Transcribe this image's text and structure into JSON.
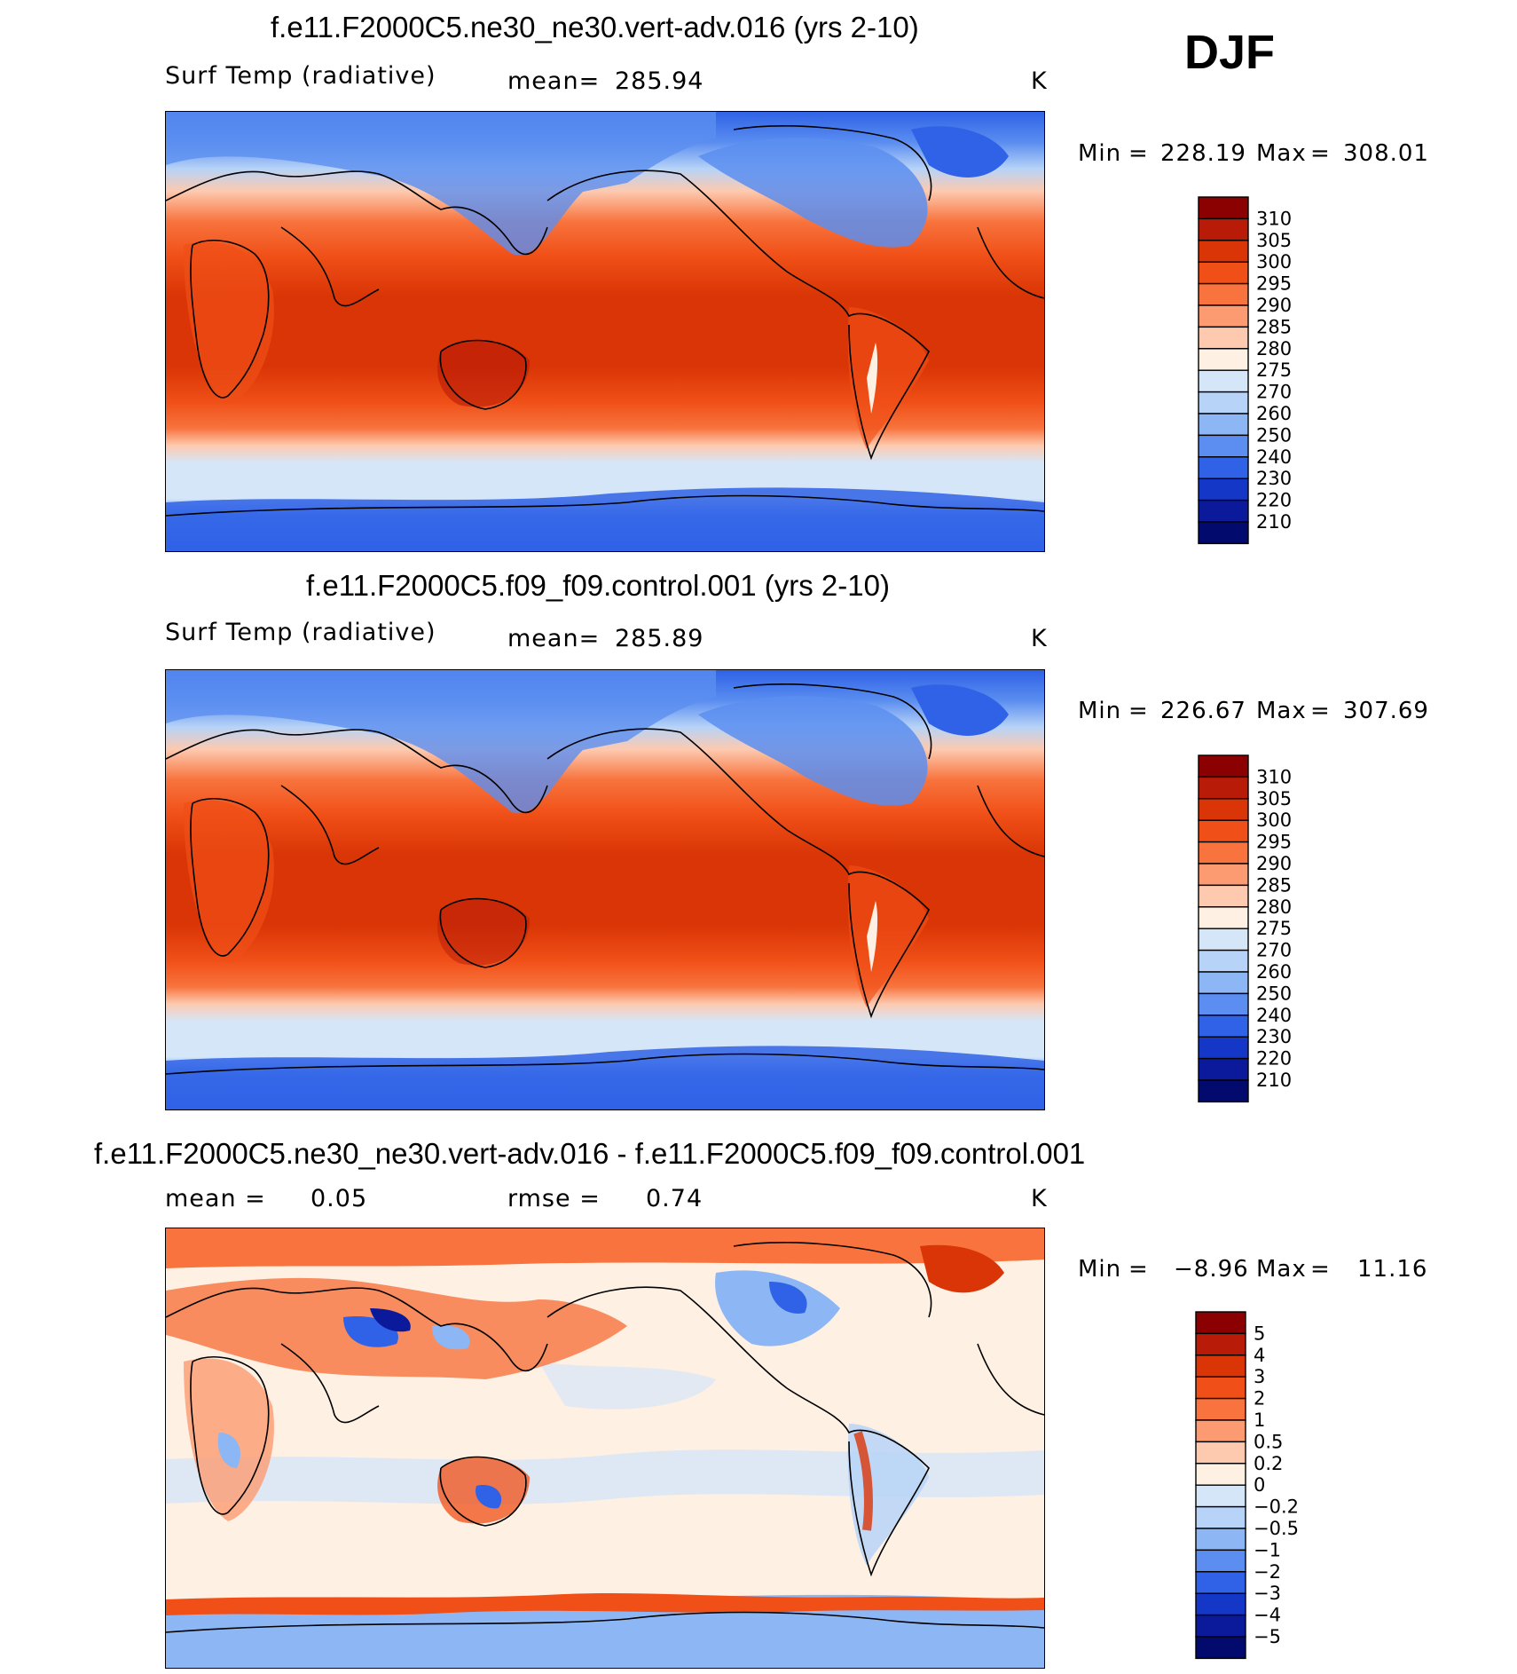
{
  "season": "DJF",
  "chart_data": [
    {
      "type": "heatmap",
      "title": "f.e11.F2000C5.ne30_ne30.vert-adv.016 (yrs 2-10)",
      "variable": "Surf Temp (radiative)",
      "mean_label": "mean=",
      "mean_value": "285.94",
      "units": "K",
      "min_label": "Min",
      "min_value": "228.19",
      "max_label": "Max",
      "max_value": "308.01",
      "levels": [
        "310",
        "305",
        "300",
        "295",
        "290",
        "285",
        "280",
        "275",
        "270",
        "260",
        "250",
        "240",
        "230",
        "220",
        "210"
      ],
      "colors": [
        "#8b0000",
        "#b81b07",
        "#d93506",
        "#f04f17",
        "#f8733d",
        "#fc9b72",
        "#fdcab0",
        "#fef0e2",
        "#d5e6f9",
        "#b7d3f7",
        "#8cb6f4",
        "#5b8ef0",
        "#2f62e6",
        "#1437c8",
        "#0a1a9a",
        "#030a6e"
      ]
    },
    {
      "type": "heatmap",
      "title": "f.e11.F2000C5.f09_f09.control.001 (yrs 2-10)",
      "variable": "Surf Temp (radiative)",
      "mean_label": "mean=",
      "mean_value": "285.89",
      "units": "K",
      "min_label": "Min",
      "min_value": "226.67",
      "max_label": "Max",
      "max_value": "307.69",
      "levels": [
        "310",
        "305",
        "300",
        "295",
        "290",
        "285",
        "280",
        "275",
        "270",
        "260",
        "250",
        "240",
        "230",
        "220",
        "210"
      ],
      "colors": [
        "#8b0000",
        "#b81b07",
        "#d93506",
        "#f04f17",
        "#f8733d",
        "#fc9b72",
        "#fdcab0",
        "#fef0e2",
        "#d5e6f9",
        "#b7d3f7",
        "#8cb6f4",
        "#5b8ef0",
        "#2f62e6",
        "#1437c8",
        "#0a1a9a",
        "#030a6e"
      ]
    },
    {
      "type": "heatmap",
      "title": "f.e11.F2000C5.ne30_ne30.vert-adv.016 - f.e11.F2000C5.f09_f09.control.001",
      "mean_label": "mean =",
      "mean_value": "0.05",
      "rmse_label": "rmse =",
      "rmse_value": "0.74",
      "units": "K",
      "min_label": "Min",
      "min_value": "−8.96",
      "max_label": "Max",
      "max_value": "11.16",
      "levels": [
        "5",
        "4",
        "3",
        "2",
        "1",
        "0.5",
        "0.2",
        "0",
        "−0.2",
        "−0.5",
        "−1",
        "−2",
        "−3",
        "−4",
        "−5"
      ],
      "colors": [
        "#8b0000",
        "#b81b07",
        "#d93506",
        "#f04f17",
        "#f8733d",
        "#fc9b72",
        "#fdcab0",
        "#fef0e2",
        "#d5e6f9",
        "#b7d3f7",
        "#8cb6f4",
        "#5b8ef0",
        "#2f62e6",
        "#1437c8",
        "#0a1a9a",
        "#030a6e"
      ]
    }
  ]
}
